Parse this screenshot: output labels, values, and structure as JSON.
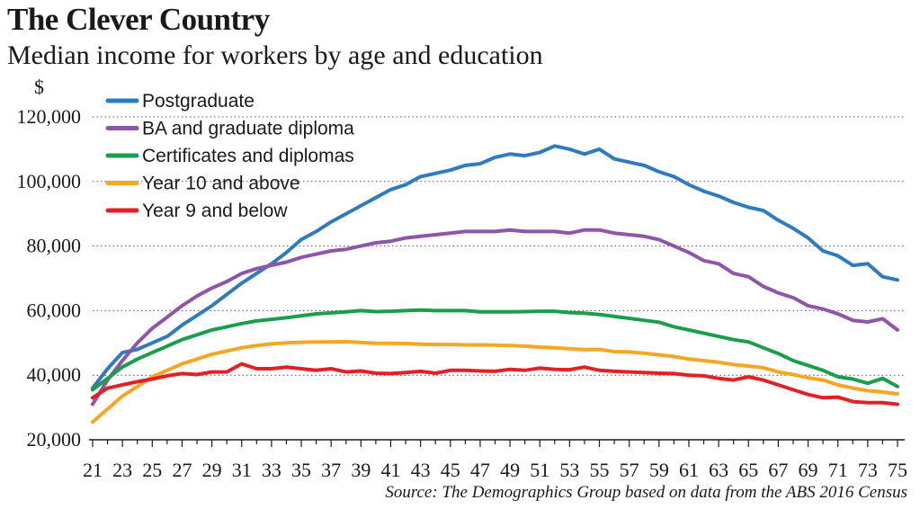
{
  "chart_data": {
    "type": "line",
    "title": "The Clever Country",
    "subtitle": "Median income for workers by age and education",
    "ylabel": "$",
    "xlabel": "",
    "source": "Source: The Demographics Group based on data from the ABS 2016 Census",
    "ylim": [
      20000,
      120000
    ],
    "yticks": [
      20000,
      40000,
      60000,
      80000,
      100000,
      120000
    ],
    "ytick_labels": [
      "20,000",
      "40,000",
      "60,000",
      "80,000",
      "100,000",
      "120,000"
    ],
    "xlim": [
      21,
      75
    ],
    "xticks": [
      21,
      23,
      25,
      27,
      29,
      31,
      33,
      35,
      37,
      39,
      41,
      43,
      45,
      47,
      49,
      51,
      53,
      55,
      57,
      59,
      61,
      63,
      65,
      67,
      69,
      71,
      73,
      75
    ],
    "grid": "horizontal dotted",
    "legend_position": "top-left",
    "series": [
      {
        "name": "Postgraduate",
        "color": "#2e7bbf",
        "points": [
          [
            21,
            36000
          ],
          [
            22,
            42000
          ],
          [
            23,
            47000
          ],
          [
            24,
            48000
          ],
          [
            25,
            50000
          ],
          [
            26,
            52000
          ],
          [
            27,
            55500
          ],
          [
            28,
            58500
          ],
          [
            29,
            61500
          ],
          [
            30,
            65000
          ],
          [
            31,
            68500
          ],
          [
            32,
            71500
          ],
          [
            33,
            74500
          ],
          [
            34,
            78000
          ],
          [
            35,
            82000
          ],
          [
            36,
            84500
          ],
          [
            37,
            87500
          ],
          [
            38,
            90000
          ],
          [
            39,
            92500
          ],
          [
            40,
            95000
          ],
          [
            41,
            97500
          ],
          [
            42,
            99000
          ],
          [
            43,
            101500
          ],
          [
            44,
            102500
          ],
          [
            45,
            103500
          ],
          [
            46,
            105000
          ],
          [
            47,
            105500
          ],
          [
            48,
            107500
          ],
          [
            49,
            108500
          ],
          [
            50,
            108000
          ],
          [
            51,
            109000
          ],
          [
            52,
            111000
          ],
          [
            53,
            110000
          ],
          [
            54,
            108500
          ],
          [
            55,
            110000
          ],
          [
            56,
            107000
          ],
          [
            57,
            106000
          ],
          [
            58,
            105000
          ],
          [
            59,
            103000
          ],
          [
            60,
            101500
          ],
          [
            61,
            99000
          ],
          [
            62,
            97000
          ],
          [
            63,
            95500
          ],
          [
            64,
            93500
          ],
          [
            65,
            92000
          ],
          [
            66,
            91000
          ],
          [
            67,
            88000
          ],
          [
            68,
            85500
          ],
          [
            69,
            82500
          ],
          [
            70,
            78500
          ],
          [
            71,
            77000
          ],
          [
            72,
            74000
          ],
          [
            73,
            74500
          ],
          [
            74,
            70500
          ],
          [
            75,
            69500
          ]
        ]
      },
      {
        "name": "BA and graduate diploma",
        "color": "#8e55a8",
        "points": [
          [
            21,
            31000
          ],
          [
            22,
            38500
          ],
          [
            23,
            44500
          ],
          [
            24,
            50000
          ],
          [
            25,
            54500
          ],
          [
            26,
            58000
          ],
          [
            27,
            61500
          ],
          [
            28,
            64500
          ],
          [
            29,
            67000
          ],
          [
            30,
            69000
          ],
          [
            31,
            71500
          ],
          [
            32,
            73000
          ],
          [
            33,
            74000
          ],
          [
            34,
            75000
          ],
          [
            35,
            76500
          ],
          [
            36,
            77500
          ],
          [
            37,
            78500
          ],
          [
            38,
            79000
          ],
          [
            39,
            80000
          ],
          [
            40,
            81000
          ],
          [
            41,
            81500
          ],
          [
            42,
            82500
          ],
          [
            43,
            83000
          ],
          [
            44,
            83500
          ],
          [
            45,
            84000
          ],
          [
            46,
            84500
          ],
          [
            47,
            84500
          ],
          [
            48,
            84500
          ],
          [
            49,
            85000
          ],
          [
            50,
            84500
          ],
          [
            51,
            84500
          ],
          [
            52,
            84500
          ],
          [
            53,
            84000
          ],
          [
            54,
            85000
          ],
          [
            55,
            85000
          ],
          [
            56,
            84000
          ],
          [
            57,
            83500
          ],
          [
            58,
            83000
          ],
          [
            59,
            82000
          ],
          [
            60,
            80000
          ],
          [
            61,
            78000
          ],
          [
            62,
            75500
          ],
          [
            63,
            74500
          ],
          [
            64,
            71500
          ],
          [
            65,
            70500
          ],
          [
            66,
            67500
          ],
          [
            67,
            65500
          ],
          [
            68,
            64000
          ],
          [
            69,
            61500
          ],
          [
            70,
            60500
          ],
          [
            71,
            59000
          ],
          [
            72,
            57000
          ],
          [
            73,
            56500
          ],
          [
            74,
            57500
          ],
          [
            75,
            54000
          ]
        ]
      },
      {
        "name": "Certificates and diplomas",
        "color": "#1a9e4b",
        "points": [
          [
            21,
            35500
          ],
          [
            22,
            39000
          ],
          [
            23,
            42500
          ],
          [
            24,
            45000
          ],
          [
            25,
            47000
          ],
          [
            26,
            49000
          ],
          [
            27,
            51000
          ],
          [
            28,
            52500
          ],
          [
            29,
            54000
          ],
          [
            30,
            55000
          ],
          [
            31,
            56000
          ],
          [
            32,
            56800
          ],
          [
            33,
            57300
          ],
          [
            34,
            57800
          ],
          [
            35,
            58400
          ],
          [
            36,
            59000
          ],
          [
            37,
            59300
          ],
          [
            38,
            59600
          ],
          [
            39,
            60000
          ],
          [
            40,
            59700
          ],
          [
            41,
            59800
          ],
          [
            42,
            60000
          ],
          [
            43,
            60200
          ],
          [
            44,
            60000
          ],
          [
            45,
            60000
          ],
          [
            46,
            60000
          ],
          [
            47,
            59600
          ],
          [
            48,
            59600
          ],
          [
            49,
            59600
          ],
          [
            50,
            59700
          ],
          [
            51,
            59800
          ],
          [
            52,
            59800
          ],
          [
            53,
            59400
          ],
          [
            54,
            59200
          ],
          [
            55,
            58800
          ],
          [
            56,
            58200
          ],
          [
            57,
            57600
          ],
          [
            58,
            57000
          ],
          [
            59,
            56400
          ],
          [
            60,
            55000
          ],
          [
            61,
            54000
          ],
          [
            62,
            53000
          ],
          [
            63,
            52000
          ],
          [
            64,
            51000
          ],
          [
            65,
            50300
          ],
          [
            66,
            48500
          ],
          [
            67,
            46700
          ],
          [
            68,
            44500
          ],
          [
            69,
            43000
          ],
          [
            70,
            41500
          ],
          [
            71,
            39500
          ],
          [
            72,
            38800
          ],
          [
            73,
            37500
          ],
          [
            74,
            39000
          ],
          [
            75,
            36500
          ]
        ]
      },
      {
        "name": "Year 10 and above",
        "color": "#f5a623",
        "points": [
          [
            21,
            25500
          ],
          [
            22,
            29500
          ],
          [
            23,
            33500
          ],
          [
            24,
            36500
          ],
          [
            25,
            39500
          ],
          [
            26,
            41500
          ],
          [
            27,
            43500
          ],
          [
            28,
            45000
          ],
          [
            29,
            46500
          ],
          [
            30,
            47500
          ],
          [
            31,
            48500
          ],
          [
            32,
            49200
          ],
          [
            33,
            49700
          ],
          [
            34,
            50000
          ],
          [
            35,
            50200
          ],
          [
            36,
            50300
          ],
          [
            37,
            50300
          ],
          [
            38,
            50400
          ],
          [
            39,
            50100
          ],
          [
            40,
            49900
          ],
          [
            41,
            49900
          ],
          [
            42,
            49800
          ],
          [
            43,
            49600
          ],
          [
            44,
            49500
          ],
          [
            45,
            49500
          ],
          [
            46,
            49400
          ],
          [
            47,
            49400
          ],
          [
            48,
            49300
          ],
          [
            49,
            49200
          ],
          [
            50,
            49000
          ],
          [
            51,
            48700
          ],
          [
            52,
            48500
          ],
          [
            53,
            48200
          ],
          [
            54,
            47900
          ],
          [
            55,
            48000
          ],
          [
            56,
            47300
          ],
          [
            57,
            47200
          ],
          [
            58,
            46800
          ],
          [
            59,
            46300
          ],
          [
            60,
            45800
          ],
          [
            61,
            45000
          ],
          [
            62,
            44500
          ],
          [
            63,
            44000
          ],
          [
            64,
            43300
          ],
          [
            65,
            42800
          ],
          [
            66,
            42300
          ],
          [
            67,
            41000
          ],
          [
            68,
            40200
          ],
          [
            69,
            39200
          ],
          [
            70,
            38500
          ],
          [
            71,
            37000
          ],
          [
            72,
            36000
          ],
          [
            73,
            35200
          ],
          [
            74,
            34800
          ],
          [
            75,
            34200
          ]
        ]
      },
      {
        "name": "Year 9 and below",
        "color": "#e02226",
        "points": [
          [
            21,
            33000
          ],
          [
            22,
            36000
          ],
          [
            23,
            37000
          ],
          [
            24,
            38000
          ],
          [
            25,
            38800
          ],
          [
            26,
            39800
          ],
          [
            27,
            40500
          ],
          [
            28,
            40200
          ],
          [
            29,
            41000
          ],
          [
            30,
            41000
          ],
          [
            31,
            43500
          ],
          [
            32,
            42000
          ],
          [
            33,
            42000
          ],
          [
            34,
            42500
          ],
          [
            35,
            42000
          ],
          [
            36,
            41500
          ],
          [
            37,
            42000
          ],
          [
            38,
            41000
          ],
          [
            39,
            41300
          ],
          [
            40,
            40600
          ],
          [
            41,
            40500
          ],
          [
            42,
            40800
          ],
          [
            43,
            41200
          ],
          [
            44,
            40600
          ],
          [
            45,
            41500
          ],
          [
            46,
            41500
          ],
          [
            47,
            41300
          ],
          [
            48,
            41200
          ],
          [
            49,
            41800
          ],
          [
            50,
            41500
          ],
          [
            51,
            42200
          ],
          [
            52,
            41800
          ],
          [
            53,
            41700
          ],
          [
            54,
            42500
          ],
          [
            55,
            41500
          ],
          [
            56,
            41200
          ],
          [
            57,
            41000
          ],
          [
            58,
            40800
          ],
          [
            59,
            40600
          ],
          [
            60,
            40500
          ],
          [
            61,
            40000
          ],
          [
            62,
            39800
          ],
          [
            63,
            39000
          ],
          [
            64,
            38500
          ],
          [
            65,
            39500
          ],
          [
            66,
            38500
          ],
          [
            67,
            37000
          ],
          [
            68,
            35500
          ],
          [
            69,
            34000
          ],
          [
            70,
            33000
          ],
          [
            71,
            33200
          ],
          [
            72,
            31800
          ],
          [
            73,
            31500
          ],
          [
            74,
            31500
          ],
          [
            75,
            31000
          ]
        ]
      }
    ]
  }
}
